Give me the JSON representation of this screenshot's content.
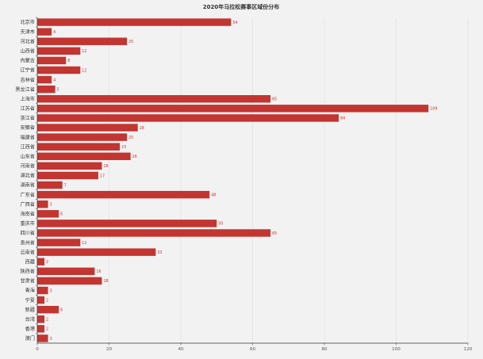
{
  "chart_data": {
    "type": "bar",
    "orientation": "horizontal",
    "title": "2020年马拉松赛事区域份分布",
    "categories": [
      "北京市",
      "天津市",
      "河北省",
      "山西省",
      "内蒙古",
      "辽宁省",
      "吉林省",
      "黑龙江省",
      "上海市",
      "江苏省",
      "浙江省",
      "安徽省",
      "福建省",
      "江西省",
      "山东省",
      "河南省",
      "湖北省",
      "湖南省",
      "广东省",
      "广西省",
      "海南省",
      "重庆市",
      "四川省",
      "贵州省",
      "云南省",
      "西藏",
      "陕西省",
      "甘肃省",
      "青海",
      "宁夏",
      "新疆",
      "台湾",
      "香港",
      "澳门"
    ],
    "values": [
      54,
      4,
      25,
      12,
      8,
      12,
      4,
      5,
      65,
      109,
      84,
      28,
      25,
      23,
      26,
      18,
      17,
      7,
      48,
      3,
      6,
      50,
      65,
      12,
      33,
      2,
      16,
      18,
      3,
      2,
      6,
      2,
      2,
      3
    ],
    "xlim": [
      0,
      120
    ],
    "xticks": [
      0,
      20,
      40,
      60,
      80,
      100,
      120
    ],
    "grid": true,
    "bar_color": "#c23531",
    "label_color": "#c23531"
  }
}
